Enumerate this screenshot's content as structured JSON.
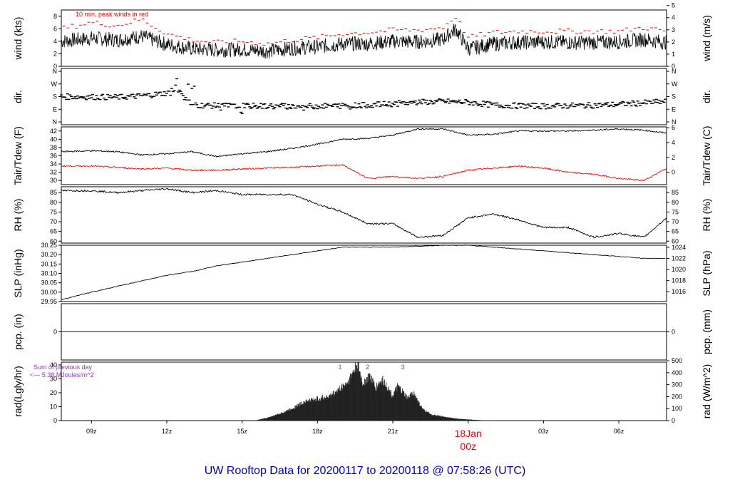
{
  "title": "UW Rooftop Data for 20200117  to  20200118 @ 07:58:26  (UTC)",
  "x_ticks": [
    "09z",
    "12z",
    "15z",
    "18z",
    "21z",
    "03z",
    "06z"
  ],
  "x_date_label": {
    "day": "18Jan",
    "hour": "00z"
  },
  "colors": {
    "title": "#0000cc",
    "peak": "#ff0000",
    "dewpoint": "#ff0000",
    "pcp_line": "#0000ff",
    "annotation": "#9933cc",
    "date_label": "#ff0000",
    "series": "#000000"
  },
  "chart_data": [
    {
      "type": "line",
      "name": "wind",
      "ylabel_left": "wind (kts)",
      "ylabel_right": "wind (m/s)",
      "ylim_left": [
        0,
        9
      ],
      "ticks_left": [
        "0",
        "2",
        "4",
        "6",
        "8"
      ],
      "ticks_right": [
        "0",
        "1",
        "2",
        "3",
        "4",
        "5"
      ],
      "annotation": "10 min. peak winds in red",
      "x_hours": [
        7.8,
        9,
        10,
        11,
        12,
        13,
        14,
        15,
        16,
        17,
        18,
        19,
        20,
        21,
        22,
        23,
        23.5,
        24,
        25,
        26,
        27,
        28,
        29,
        30,
        31,
        31.9
      ],
      "series": [
        {
          "label": "wind",
          "values": [
            4.0,
            4.5,
            4.2,
            4.8,
            3.5,
            2.8,
            2.6,
            2.7,
            2.4,
            2.9,
            3.1,
            3.6,
            3.6,
            4.0,
            3.9,
            4.3,
            6.0,
            2.8,
            3.6,
            3.8,
            3.9,
            3.8,
            3.8,
            3.9,
            4.3,
            3.8
          ]
        },
        {
          "label": "10 min. peak",
          "values": [
            6.0,
            7.0,
            6.5,
            7.5,
            5.2,
            4.2,
            3.8,
            4.0,
            3.6,
            4.2,
            4.6,
            5.2,
            5.4,
            5.8,
            5.8,
            6.2,
            8.0,
            4.6,
            5.4,
            5.6,
            5.6,
            5.6,
            5.6,
            5.6,
            6.2,
            5.6
          ]
        }
      ]
    },
    {
      "type": "scatter",
      "name": "dir",
      "ylabel_left": "dir.",
      "ylabel_right": "dir.",
      "ticks_left": [
        "N",
        "E",
        "S",
        "W",
        "N"
      ],
      "ticks_right": [
        "N",
        "E",
        "S",
        "W",
        "N"
      ],
      "x_hours": [
        7.8,
        9,
        10,
        11,
        12,
        12.5,
        13,
        14,
        15,
        16,
        17,
        18,
        19,
        20,
        21,
        22,
        23,
        24,
        25,
        26,
        27,
        28,
        29,
        30,
        31,
        31.9
      ],
      "values_deg": [
        180,
        178,
        175,
        185,
        205,
        215,
        120,
        115,
        115,
        112,
        110,
        112,
        115,
        120,
        128,
        140,
        145,
        140,
        120,
        115,
        112,
        115,
        118,
        125,
        135,
        145
      ]
    },
    {
      "type": "line",
      "name": "temp",
      "ylabel_left": "Tair/Tdew (F)",
      "ylabel_right": "Tair/Tdew (C)",
      "ylim_left": [
        29,
        43
      ],
      "ticks_left": [
        "30",
        "32",
        "34",
        "36",
        "38",
        "40",
        "42"
      ],
      "ticks_right": [
        "0",
        "2",
        "4",
        "6"
      ],
      "x_hours": [
        7.8,
        9,
        10,
        11,
        12,
        13,
        14,
        15,
        16,
        17,
        18,
        19,
        20,
        21,
        22,
        23,
        24,
        25,
        26,
        27,
        28,
        29,
        30,
        31,
        31.9
      ],
      "series": [
        {
          "label": "Tair",
          "values": [
            37.0,
            37.2,
            37.0,
            36.2,
            36.5,
            37.0,
            35.8,
            36.5,
            37.0,
            37.8,
            38.8,
            40.0,
            40.2,
            41.0,
            42.5,
            42.5,
            41.0,
            41.2,
            42.0,
            42.0,
            42.0,
            42.2,
            42.5,
            42.2,
            41.5
          ]
        },
        {
          "label": "Tdew",
          "values": [
            33.5,
            33.5,
            33.2,
            32.8,
            33.0,
            32.5,
            32.5,
            32.8,
            33.0,
            33.2,
            33.5,
            33.8,
            30.5,
            31.0,
            30.5,
            31.0,
            32.5,
            33.0,
            33.5,
            33.0,
            32.0,
            31.5,
            30.5,
            30.0,
            33.0
          ]
        }
      ]
    },
    {
      "type": "line",
      "name": "rh",
      "ylabel_left": "RH (%)",
      "ylabel_right": "RH (%)",
      "ylim_left": [
        59,
        88
      ],
      "ticks_left": [
        "60",
        "65",
        "70",
        "75",
        "80",
        "85"
      ],
      "ticks_right": [
        "60",
        "65",
        "70",
        "75",
        "80",
        "85"
      ],
      "x_hours": [
        7.8,
        9,
        10,
        11,
        12,
        13,
        14,
        15,
        16,
        17,
        18,
        19,
        20,
        21,
        22,
        23,
        24,
        25,
        26,
        27,
        28,
        29,
        30,
        31,
        31.9
      ],
      "values": [
        86,
        86,
        85,
        86,
        87,
        85,
        86,
        84,
        84,
        84,
        79,
        75,
        69,
        69,
        62,
        63,
        72,
        74,
        71,
        67,
        67,
        62,
        64,
        62,
        72
      ]
    },
    {
      "type": "line",
      "name": "slp",
      "ylabel_left": "SLP (inHg)",
      "ylabel_right": "SLP (hPa)",
      "ylim_left": [
        29.95,
        30.25
      ],
      "ticks_left": [
        "29.95",
        "30.00",
        "30.05",
        "30.10",
        "30.15",
        "30.20",
        "30.25"
      ],
      "ticks_right": [
        "1016",
        "1018",
        "1020",
        "1022",
        "1024"
      ],
      "x_hours": [
        7.8,
        9,
        10,
        11,
        12,
        13,
        14,
        15,
        16,
        17,
        18,
        19,
        20,
        21,
        22,
        23,
        24,
        25,
        26,
        27,
        28,
        29,
        30,
        31,
        31.9
      ],
      "values": [
        29.96,
        30.0,
        30.03,
        30.06,
        30.09,
        30.11,
        30.14,
        30.16,
        30.18,
        30.2,
        30.22,
        30.24,
        30.24,
        30.24,
        30.245,
        30.25,
        30.25,
        30.24,
        30.23,
        30.22,
        30.21,
        30.2,
        30.19,
        30.18,
        30.18
      ]
    },
    {
      "type": "line",
      "name": "pcp",
      "ylabel_left": "pcp. (in)",
      "ylabel_right": "pcp. (mm)",
      "ticks_left": [
        "0"
      ],
      "ticks_right": [
        "0"
      ],
      "x_hours": [
        7.8,
        31.9
      ],
      "values": [
        0,
        0
      ]
    },
    {
      "type": "area",
      "name": "rad",
      "ylabel_left": "rad(Lgly/hr)",
      "ylabel_right": "rad (W/m^2)",
      "ylim_left": [
        0,
        42
      ],
      "ticks_left": [
        "0",
        "10",
        "20",
        "30",
        "40"
      ],
      "ticks_right": [
        "0",
        "100",
        "200",
        "300",
        "400",
        "500"
      ],
      "annotation_lines": [
        "Sum of previous day",
        "<--- 5.38 MJoules/m^2"
      ],
      "markers": [
        "1",
        "2",
        "3"
      ],
      "x_hours": [
        15.5,
        16.0,
        16.5,
        17.0,
        17.5,
        18.0,
        18.5,
        18.8,
        19.2,
        19.5,
        19.6,
        19.8,
        20.1,
        20.3,
        20.6,
        21.0,
        21.2,
        21.6,
        21.8,
        22.2,
        22.6,
        23.0,
        23.5,
        24.0,
        24.5,
        25.0,
        25.2
      ],
      "values": [
        0,
        2,
        5,
        9,
        14,
        16,
        18,
        22,
        28,
        38,
        41,
        27,
        33,
        24,
        30,
        18,
        25,
        16,
        21,
        8,
        4,
        3,
        1.5,
        0.8,
        0.3,
        0.1,
        0
      ]
    }
  ]
}
